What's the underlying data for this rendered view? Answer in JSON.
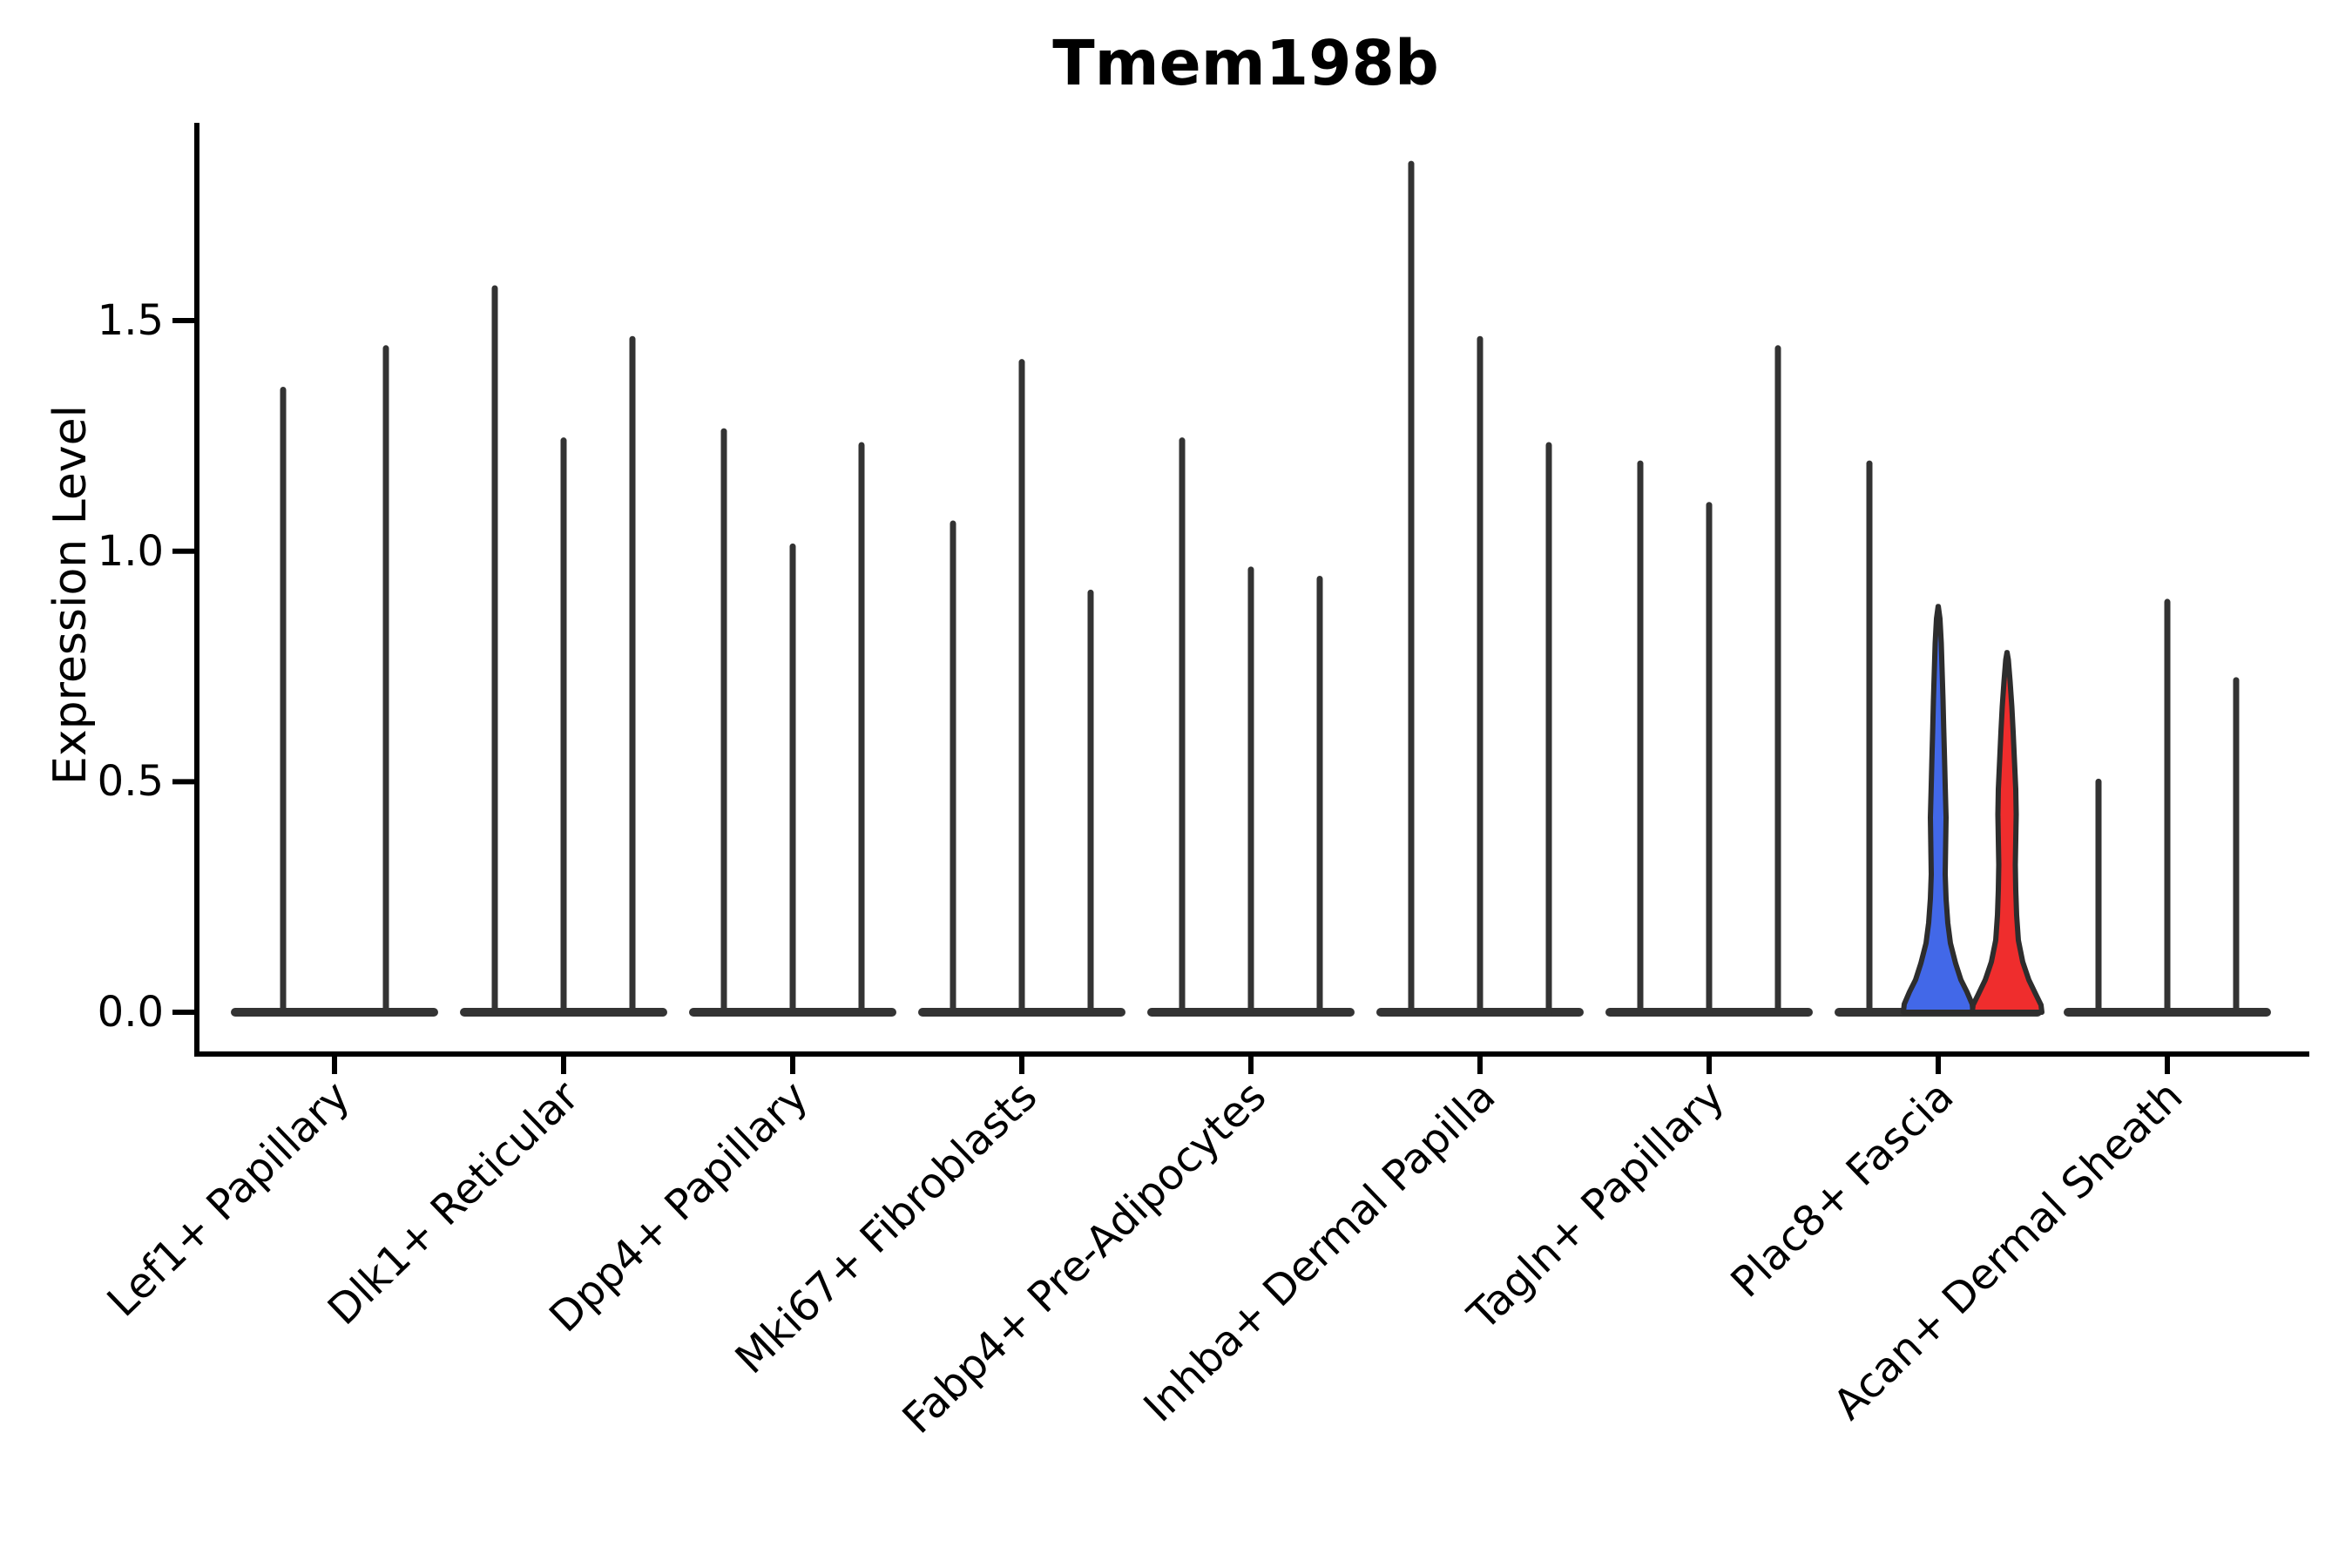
{
  "title": "Tmem198b",
  "ylabel": "Expression Level",
  "colors": {
    "blue": "#4268E8",
    "red": "#EF2D2D",
    "line": "#333333",
    "axis": "#000000",
    "background": "#FFFFFF"
  },
  "chart_data": {
    "type": "violin",
    "title": "Tmem198b",
    "xlabel": "",
    "ylabel": "Expression Level",
    "ylim": [
      0,
      1.92
    ],
    "yticks": [
      0,
      0.5,
      1,
      1.5
    ],
    "ytick_labels": [
      "0.0",
      "0.5",
      "1.0",
      "1.5"
    ],
    "grid": false,
    "legend": "none",
    "categories": [
      "Lef1+ Papillary",
      "Dlk1+ Reticular",
      "Dpp4+ Papillary",
      "Mki67+ Fibroblasts",
      "Fabp4+ Pre-Adipocytes",
      "Inhba+ Dermal Papilla",
      "Tagln+ Papillary",
      "Plac8+ Fascia",
      "Acan+ Dermal Sheath"
    ],
    "groups_per_category": [
      2,
      3,
      3,
      3,
      3,
      3,
      3,
      3,
      3
    ],
    "max_expression": [
      [
        1.35,
        1.44
      ],
      [
        1.57,
        1.24,
        1.46
      ],
      [
        1.26,
        1.01,
        1.23
      ],
      [
        1.06,
        1.41,
        0.91
      ],
      [
        1.24,
        0.96,
        0.94
      ],
      [
        1.84,
        1.46,
        1.23
      ],
      [
        1.19,
        1.1,
        1.44
      ],
      [
        1.19,
        0.88,
        0.78
      ],
      [
        0.5,
        0.89,
        0.72
      ]
    ],
    "baseline_value": 0,
    "highlighted_violins": [
      {
        "category": "Plac8+ Fascia",
        "position": 2,
        "max": 0.88,
        "color": "#4268E8",
        "name": "blue-violin"
      },
      {
        "category": "Plac8+ Fascia",
        "position": 3,
        "max": 0.78,
        "color": "#EF2D2D",
        "name": "red-violin"
      }
    ]
  }
}
